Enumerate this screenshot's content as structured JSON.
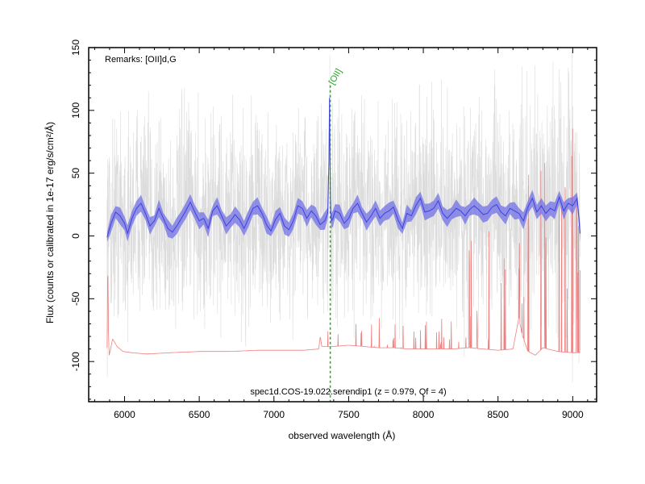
{
  "chart_data": {
    "type": "line",
    "xlabel": "observed wavelength (Å)",
    "ylabel": "Flux (counts or calibrated in 1e-17 erg/s/cm²/Å)",
    "caption": "spec1d.COS-19.022.serendip1 (z = 0.979, Qf = 4)",
    "remarks": "Remarks: [OII]d,G",
    "xlim": [
      5760,
      9160
    ],
    "ylim": [
      -132,
      150
    ],
    "xticks": [
      6000,
      6500,
      7000,
      7500,
      8000,
      8500,
      9000
    ],
    "yticks": [
      -100,
      -50,
      0,
      50,
      100,
      150
    ],
    "grid": false,
    "colors": {
      "raw": "#d3d3d3",
      "smoothed": "#4040e0",
      "band": "#7070e6",
      "error": "#f08080",
      "line_marker": "#2ca02c"
    },
    "line_markers": [
      {
        "label": "[OII]",
        "wavelength": 7377
      }
    ],
    "series": [
      {
        "role": "smoothed",
        "x": [
          5883,
          5910,
          5940,
          5970,
          6000,
          6020,
          6050,
          6080,
          6110,
          6140,
          6170,
          6200,
          6230,
          6260,
          6290,
          6320,
          6350,
          6380,
          6410,
          6440,
          6470,
          6500,
          6530,
          6560,
          6590,
          6620,
          6650,
          6680,
          6710,
          6740,
          6770,
          6800,
          6830,
          6860,
          6890,
          6920,
          6950,
          6980,
          7010,
          7040,
          7070,
          7100,
          7130,
          7160,
          7190,
          7220,
          7250,
          7280,
          7310,
          7340,
          7360,
          7368,
          7372,
          7376,
          7380,
          7385,
          7395,
          7410,
          7440,
          7470,
          7500,
          7530,
          7560,
          7590,
          7620,
          7650,
          7680,
          7710,
          7740,
          7770,
          7800,
          7830,
          7860,
          7890,
          7920,
          7950,
          7980,
          8010,
          8040,
          8070,
          8100,
          8130,
          8160,
          8190,
          8220,
          8250,
          8280,
          8310,
          8340,
          8370,
          8400,
          8430,
          8460,
          8490,
          8520,
          8550,
          8580,
          8610,
          8640,
          8670,
          8700,
          8730,
          8760,
          8790,
          8820,
          8850,
          8880,
          8910,
          8940,
          8970,
          9000,
          9030,
          9050
        ],
        "y": [
          -1,
          10,
          19,
          16,
          10,
          2,
          14,
          22,
          26,
          18,
          8,
          12,
          22,
          14,
          6,
          3,
          8,
          14,
          20,
          27,
          19,
          12,
          14,
          6,
          20,
          24,
          16,
          8,
          12,
          17,
          13,
          6,
          14,
          22,
          24,
          18,
          9,
          4,
          13,
          18,
          8,
          5,
          12,
          24,
          22,
          14,
          20,
          16,
          9,
          12,
          18,
          60,
          110,
          55,
          20,
          12,
          14,
          20,
          18,
          10,
          14,
          22,
          26,
          18,
          11,
          16,
          22,
          14,
          18,
          20,
          23,
          13,
          6,
          18,
          16,
          24,
          30,
          19,
          20,
          22,
          28,
          18,
          14,
          18,
          22,
          20,
          16,
          21,
          24,
          21,
          17,
          18,
          23,
          25,
          19,
          16,
          22,
          20,
          18,
          12,
          23,
          30,
          19,
          24,
          18,
          22,
          20,
          31,
          20,
          26,
          24,
          30,
          2
        ]
      },
      {
        "role": "error",
        "x": [
          5883,
          5888,
          5893,
          5897,
          5905,
          5920,
          5950,
          5990,
          6050,
          6150,
          6300,
          6500,
          6700,
          6900,
          7100,
          7200,
          7300,
          7310,
          7320,
          7340,
          7400,
          7500,
          7600,
          7700,
          7800,
          7900,
          8000,
          8100,
          8200,
          8300,
          8400,
          8500,
          8600,
          8640,
          8660,
          8680,
          8700,
          8720,
          8750,
          8800,
          8900,
          9000,
          9050
        ],
        "y": [
          -89,
          -20,
          -78,
          -95,
          -91,
          -82,
          -88,
          -92,
          -93,
          -94,
          -93,
          -92,
          -92,
          -91,
          -91,
          -91,
          -90,
          -80,
          -88,
          -88,
          -88,
          -87,
          -88,
          -89,
          -89,
          -90,
          -90,
          -90,
          -90,
          -89,
          -90,
          -91,
          -90,
          -65,
          -78,
          -85,
          -92,
          -93,
          -95,
          -89,
          -92,
          -93,
          -93
        ]
      }
    ]
  }
}
